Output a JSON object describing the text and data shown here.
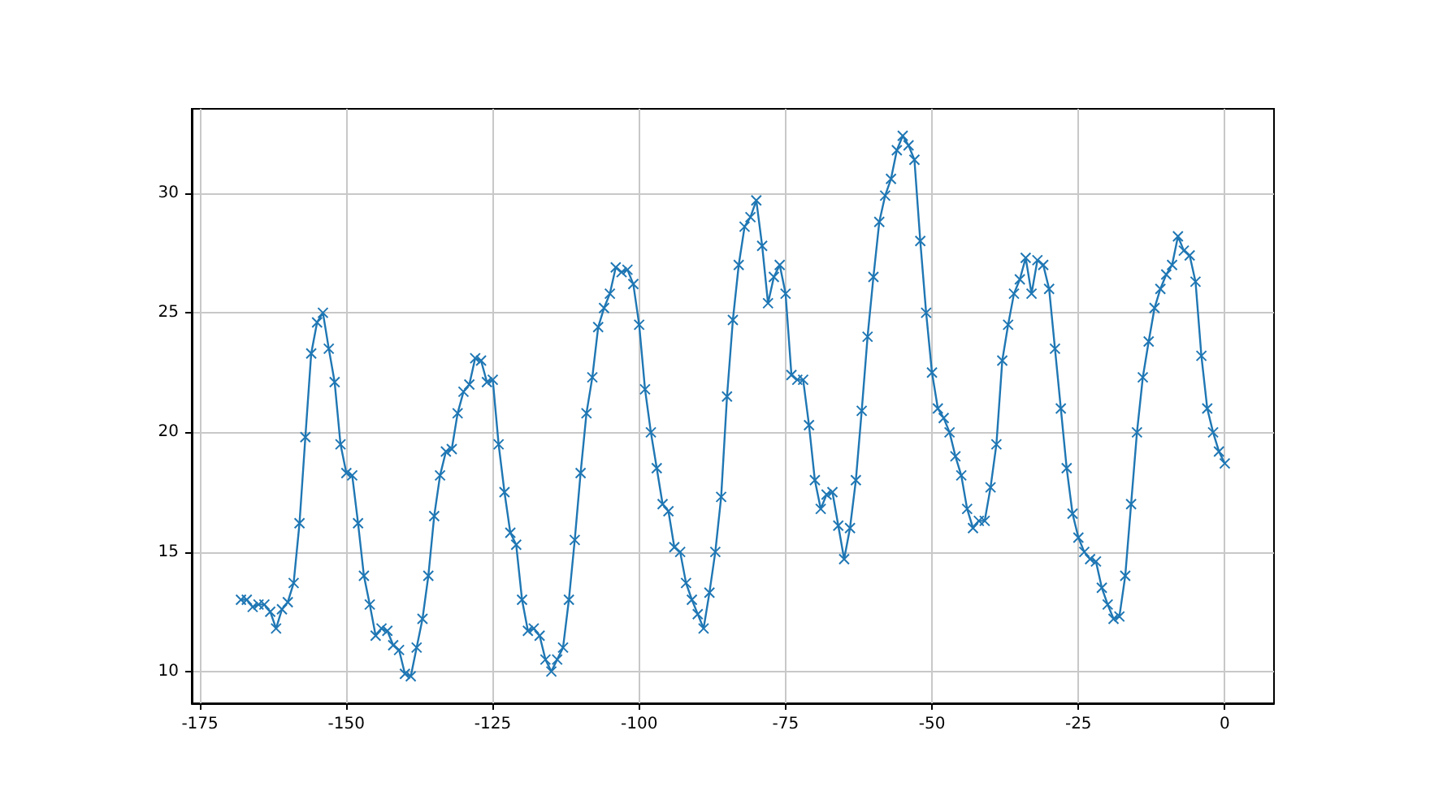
{
  "chart_data": {
    "type": "line",
    "marker": "cross",
    "grid": true,
    "xlim": [
      -176.4,
      8.4
    ],
    "xticks": [
      -175,
      -150,
      -125,
      -100,
      -75,
      -50,
      -25,
      0
    ],
    "ylim": [
      8.67,
      33.53
    ],
    "yticks": [
      10,
      15,
      20,
      25,
      30
    ],
    "x": [
      -168,
      -167,
      -166,
      -165,
      -164,
      -163,
      -162,
      -161,
      -160,
      -159,
      -158,
      -157,
      -156,
      -155,
      -154,
      -153,
      -152,
      -151,
      -150,
      -149,
      -148,
      -147,
      -146,
      -145,
      -144,
      -143,
      -142,
      -141,
      -140,
      -139,
      -138,
      -137,
      -136,
      -135,
      -134,
      -133,
      -132,
      -131,
      -130,
      -129,
      -128,
      -127,
      -126,
      -125,
      -124,
      -123,
      -122,
      -121,
      -120,
      -119,
      -118,
      -117,
      -116,
      -115,
      -114,
      -113,
      -112,
      -111,
      -110,
      -109,
      -108,
      -107,
      -106,
      -105,
      -104,
      -103,
      -102,
      -101,
      -100,
      -99,
      -98,
      -97,
      -96,
      -95,
      -94,
      -93,
      -92,
      -91,
      -90,
      -89,
      -88,
      -87,
      -86,
      -85,
      -84,
      -83,
      -82,
      -81,
      -80,
      -79,
      -78,
      -77,
      -76,
      -75,
      -74,
      -73,
      -72,
      -71,
      -70,
      -69,
      -68,
      -67,
      -66,
      -65,
      -64,
      -63,
      -62,
      -61,
      -60,
      -59,
      -58,
      -57,
      -56,
      -55,
      -54,
      -53,
      -52,
      -51,
      -50,
      -49,
      -48,
      -47,
      -46,
      -45,
      -44,
      -43,
      -42,
      -41,
      -40,
      -39,
      -38,
      -37,
      -36,
      -35,
      -34,
      -33,
      -32,
      -31,
      -30,
      -29,
      -28,
      -27,
      -26,
      -25,
      -24,
      -23,
      -22,
      -21,
      -20,
      -19,
      -18,
      -17,
      -16,
      -15,
      -14,
      -13,
      -12,
      -11,
      -10,
      -9,
      -8,
      -7,
      -6,
      -5,
      -4,
      -3,
      -2,
      -1,
      0
    ],
    "series": [
      {
        "color": "#1f77b4",
        "values": [
          13.0,
          13.0,
          12.7,
          12.8,
          12.8,
          12.5,
          11.8,
          12.6,
          12.9,
          13.7,
          16.2,
          19.8,
          23.3,
          24.6,
          25.0,
          23.5,
          22.1,
          19.5,
          18.3,
          18.2,
          16.2,
          14.0,
          12.8,
          11.5,
          11.8,
          11.7,
          11.1,
          10.9,
          9.9,
          9.8,
          11.0,
          12.2,
          14.0,
          16.5,
          18.2,
          19.2,
          19.3,
          20.8,
          21.7,
          22.0,
          23.1,
          23.0,
          22.1,
          22.2,
          19.5,
          17.5,
          15.8,
          15.3,
          13.0,
          11.7,
          11.8,
          11.5,
          10.5,
          10.0,
          10.5,
          11.0,
          13.0,
          15.5,
          18.3,
          20.8,
          22.3,
          24.4,
          25.2,
          25.8,
          26.9,
          26.7,
          26.8,
          26.2,
          24.5,
          21.8,
          20.0,
          18.5,
          17.0,
          16.7,
          15.2,
          15.0,
          13.7,
          13.0,
          12.4,
          11.8,
          13.3,
          15.0,
          17.3,
          21.5,
          24.7,
          27.0,
          28.6,
          29.0,
          29.7,
          27.8,
          25.4,
          26.5,
          27.0,
          25.8,
          22.4,
          22.2,
          22.2,
          20.3,
          18.0,
          16.8,
          17.4,
          17.5,
          16.1,
          14.7,
          16.0,
          18.0,
          20.9,
          24.0,
          26.5,
          28.8,
          29.9,
          30.6,
          31.8,
          32.4,
          32.0,
          31.4,
          28.0,
          25.0,
          22.5,
          21.0,
          20.6,
          20.0,
          19.0,
          18.2,
          16.8,
          16.0,
          16.3,
          16.3,
          17.7,
          19.5,
          23.0,
          24.5,
          25.8,
          26.4,
          27.3,
          25.8,
          27.2,
          27.0,
          26.0,
          23.5,
          21.0,
          18.5,
          16.6,
          15.6,
          15.0,
          14.7,
          14.6,
          13.5,
          12.8,
          12.2,
          12.3,
          14.0,
          17.0,
          20.0,
          22.3,
          23.8,
          25.2,
          26.0,
          26.6,
          27.0,
          28.2,
          27.6,
          27.4,
          26.3,
          23.2,
          21.0,
          20.0,
          19.2,
          18.7
        ]
      }
    ]
  }
}
